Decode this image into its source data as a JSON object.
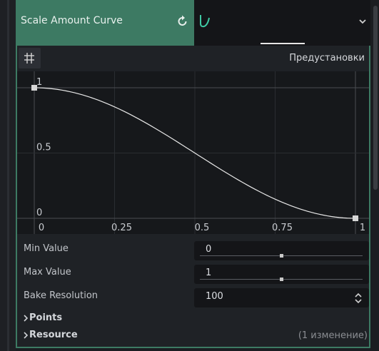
{
  "property": {
    "name": "Scale Amount Curve"
  },
  "toolbar": {
    "presets_label": "Предустановки"
  },
  "curve": {
    "x_ticks": [
      "0",
      "0.25",
      "0.5",
      "0.75",
      "1"
    ],
    "y_ticks": [
      "1",
      "0.5",
      "0"
    ],
    "points": [
      {
        "x": 0,
        "y": 1
      },
      {
        "x": 1,
        "y": 0
      }
    ]
  },
  "fields": {
    "min_value": {
      "label": "Min Value",
      "value": "0",
      "slider_fraction": 0.5
    },
    "max_value": {
      "label": "Max Value",
      "value": "1",
      "slider_fraction": 0.5
    },
    "bake_resolution": {
      "label": "Bake Resolution",
      "value": "100"
    }
  },
  "sections": {
    "points": {
      "label": "Points"
    },
    "resource": {
      "label": "Resource",
      "note": "(1 изменение)"
    }
  },
  "colors": {
    "accent": "#3d7a63",
    "curve": "#e8e8e8"
  }
}
